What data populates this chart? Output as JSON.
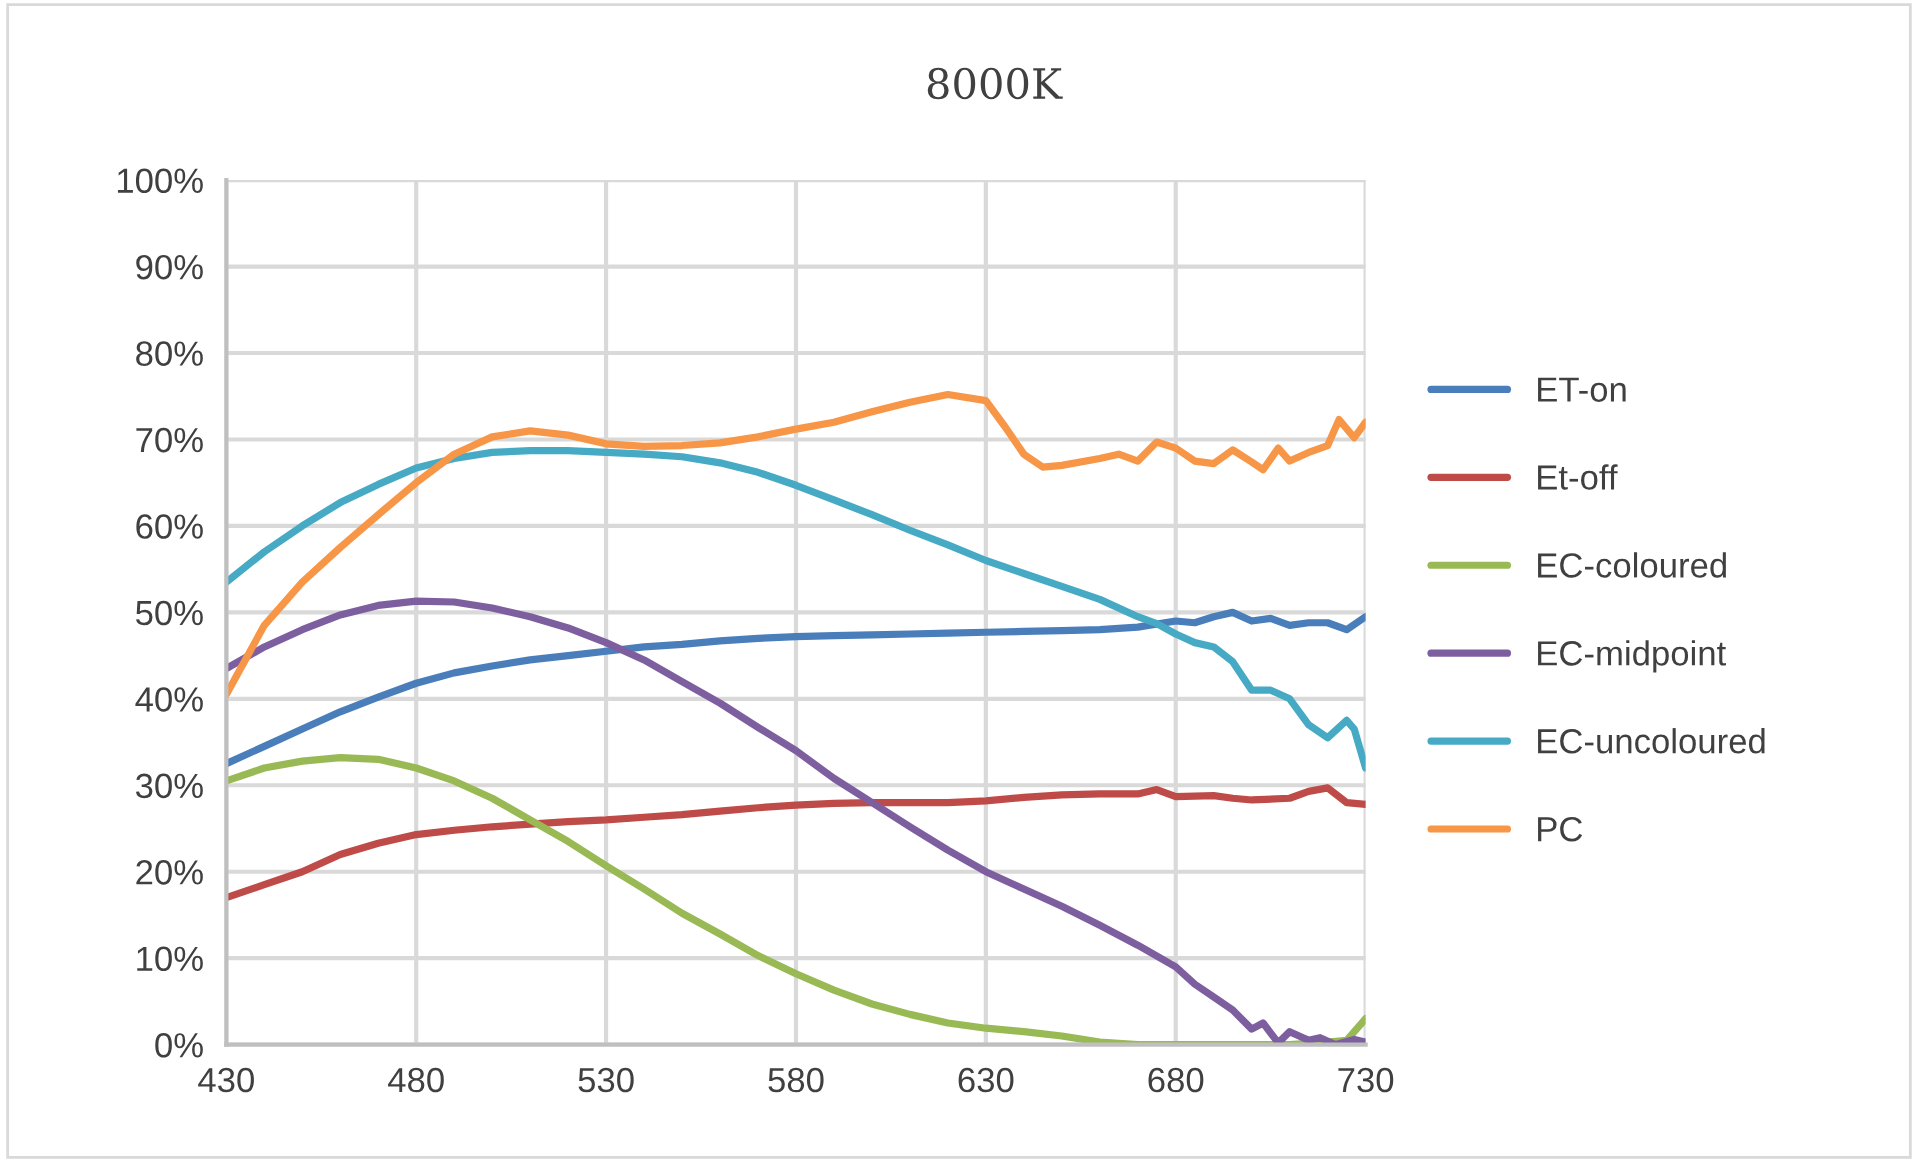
{
  "chart_data": {
    "type": "line",
    "title": "8000K",
    "xlim": [
      430,
      730
    ],
    "xticks": [
      430,
      480,
      530,
      580,
      630,
      680,
      730
    ],
    "ylim": [
      0,
      100
    ],
    "yticks": [
      {
        "value": 0,
        "label": "0%"
      },
      {
        "value": 10,
        "label": "10%"
      },
      {
        "value": 20,
        "label": "20%"
      },
      {
        "value": 30,
        "label": "30%"
      },
      {
        "value": 40,
        "label": "40%"
      },
      {
        "value": 50,
        "label": "50%"
      },
      {
        "value": 60,
        "label": "60%"
      },
      {
        "value": 70,
        "label": "70%"
      },
      {
        "value": 80,
        "label": "80%"
      },
      {
        "value": 90,
        "label": "90%"
      },
      {
        "value": 100,
        "label": "100%"
      }
    ],
    "grid": true,
    "legend": "right",
    "marker": "none",
    "line_style": "solid",
    "series": [
      {
        "name": "ET-on",
        "color": "#4a7ebb",
        "x": [
          430,
          440,
          450,
          460,
          470,
          480,
          490,
          500,
          510,
          520,
          530,
          540,
          550,
          560,
          570,
          580,
          590,
          600,
          610,
          620,
          630,
          640,
          650,
          660,
          670,
          680,
          685,
          690,
          695,
          700,
          705,
          710,
          715,
          720,
          725,
          730
        ],
        "values": [
          32.5,
          34.5,
          36.5,
          38.5,
          40.2,
          41.8,
          43,
          43.8,
          44.5,
          45,
          45.5,
          46,
          46.3,
          46.7,
          47,
          47.2,
          47.3,
          47.4,
          47.5,
          47.6,
          47.7,
          47.8,
          47.9,
          48,
          48.3,
          49,
          48.8,
          49.5,
          50,
          49,
          49.3,
          48.5,
          48.8,
          48.8,
          48,
          49.5
        ]
      },
      {
        "name": "Et-off",
        "color": "#be4b48",
        "x": [
          430,
          440,
          450,
          460,
          470,
          480,
          490,
          500,
          510,
          520,
          530,
          540,
          550,
          560,
          570,
          580,
          590,
          600,
          610,
          620,
          630,
          640,
          650,
          660,
          670,
          675,
          680,
          690,
          695,
          700,
          710,
          715,
          720,
          725,
          730
        ],
        "values": [
          17,
          18.5,
          20,
          22,
          23.3,
          24.3,
          24.8,
          25.2,
          25.5,
          25.8,
          26,
          26.3,
          26.6,
          27,
          27.4,
          27.7,
          27.9,
          28,
          28,
          28,
          28.2,
          28.6,
          28.9,
          29,
          29,
          29.5,
          28.7,
          28.8,
          28.5,
          28.3,
          28.5,
          29.3,
          29.7,
          28,
          27.8
        ]
      },
      {
        "name": "EC-coloured",
        "color": "#98b954",
        "x": [
          430,
          440,
          450,
          460,
          470,
          480,
          490,
          500,
          510,
          520,
          530,
          540,
          550,
          560,
          570,
          580,
          590,
          600,
          610,
          620,
          630,
          640,
          650,
          660,
          670,
          680,
          690,
          700,
          710,
          720,
          725,
          730
        ],
        "values": [
          30.5,
          32,
          32.8,
          33.2,
          33,
          32,
          30.5,
          28.5,
          26,
          23.5,
          20.7,
          18,
          15.2,
          12.8,
          10.3,
          8.2,
          6.3,
          4.7,
          3.5,
          2.5,
          1.9,
          1.5,
          1,
          0.3,
          0,
          0,
          0,
          0,
          0,
          0.3,
          0.5,
          3
        ]
      },
      {
        "name": "EC-midpoint",
        "color": "#7d5fa0",
        "x": [
          430,
          440,
          450,
          460,
          470,
          480,
          490,
          500,
          510,
          520,
          530,
          540,
          550,
          560,
          570,
          580,
          590,
          600,
          610,
          620,
          630,
          640,
          650,
          660,
          670,
          680,
          685,
          690,
          695,
          700,
          703,
          707,
          710,
          715,
          718,
          722,
          727,
          730
        ],
        "values": [
          43.5,
          46,
          48,
          49.7,
          50.8,
          51.3,
          51.2,
          50.5,
          49.5,
          48.2,
          46.5,
          44.5,
          42,
          39.5,
          36.7,
          34,
          30.8,
          28,
          25.2,
          22.5,
          20,
          18,
          16,
          13.8,
          11.5,
          9,
          7,
          5.5,
          4,
          1.8,
          2.5,
          0.2,
          1.5,
          0.5,
          0.8,
          0,
          0.6,
          0.3
        ]
      },
      {
        "name": "EC-uncoloured",
        "color": "#46aac5",
        "x": [
          430,
          440,
          450,
          460,
          470,
          480,
          490,
          500,
          510,
          520,
          530,
          540,
          550,
          560,
          570,
          580,
          590,
          600,
          610,
          620,
          630,
          640,
          650,
          660,
          670,
          675,
          680,
          685,
          690,
          695,
          700,
          705,
          710,
          715,
          720,
          725,
          727,
          730
        ],
        "values": [
          53.5,
          57,
          60,
          62.7,
          64.8,
          66.7,
          67.8,
          68.5,
          68.7,
          68.7,
          68.5,
          68.3,
          68,
          67.3,
          66.2,
          64.7,
          63,
          61.3,
          59.5,
          57.8,
          56,
          54.5,
          53,
          51.5,
          49.5,
          48.7,
          47.5,
          46.5,
          46,
          44.3,
          41,
          41,
          40,
          37,
          35.5,
          37.5,
          36.5,
          32
        ]
      },
      {
        "name": "PC",
        "color": "#f79646",
        "x": [
          430,
          440,
          450,
          460,
          470,
          480,
          490,
          500,
          510,
          520,
          530,
          540,
          550,
          560,
          570,
          580,
          590,
          600,
          610,
          620,
          630,
          635,
          640,
          645,
          650,
          660,
          665,
          670,
          675,
          680,
          685,
          690,
          695,
          700,
          703,
          707,
          710,
          715,
          720,
          723,
          727,
          730
        ],
        "values": [
          40.5,
          48.5,
          53.5,
          57.5,
          61.3,
          65,
          68.3,
          70.3,
          71,
          70.5,
          69.5,
          69.2,
          69.3,
          69.6,
          70.3,
          71.2,
          72,
          73.2,
          74.3,
          75.2,
          74.5,
          71.5,
          68.3,
          66.8,
          67,
          67.8,
          68.3,
          67.5,
          69.7,
          69,
          67.5,
          67.2,
          68.8,
          67.4,
          66.5,
          69,
          67.5,
          68.5,
          69.3,
          72.3,
          70.2,
          72
        ]
      }
    ]
  }
}
